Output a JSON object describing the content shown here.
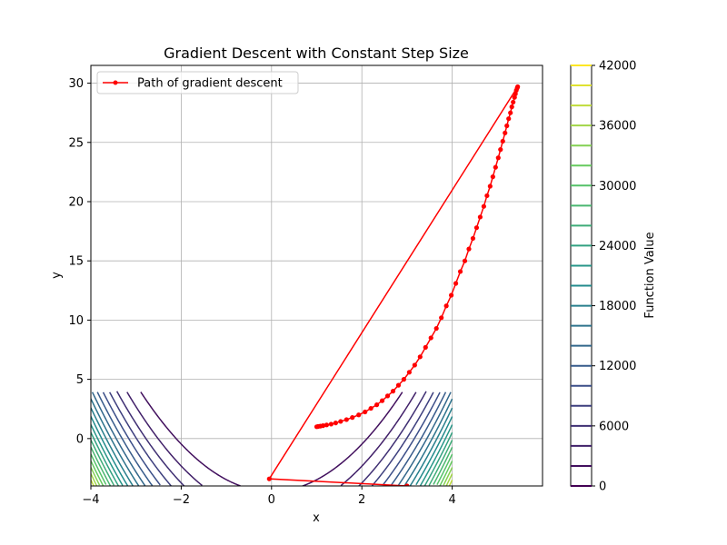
{
  "chart_data": {
    "type": "line",
    "title": "Gradient Descent with Constant Step Size",
    "xlabel": "x",
    "ylabel": "y",
    "xlim": [
      -4,
      6
    ],
    "ylim": [
      -4,
      31.5
    ],
    "xticks": [
      -4,
      -2,
      0,
      2,
      4
    ],
    "xtick_labels": [
      "−4",
      "−2",
      "0",
      "2",
      "4"
    ],
    "yticks": [
      -5,
      0,
      5,
      10,
      15,
      20,
      25,
      30
    ],
    "ytick_labels": [
      "−5",
      "0",
      "5",
      "10",
      "15",
      "20",
      "25",
      "30"
    ],
    "grid": true,
    "legend": {
      "placement": "top-left",
      "entries": [
        "Path of gradient descent"
      ]
    },
    "series": [
      {
        "name": "Path of gradient descent",
        "color": "#ff0000",
        "marker": "circle",
        "x": [
          3.0,
          -0.05,
          5.45,
          5.44,
          5.42,
          5.4,
          5.38,
          5.35,
          5.32,
          5.29,
          5.25,
          5.21,
          5.17,
          5.12,
          5.07,
          5.02,
          4.96,
          4.9,
          4.84,
          4.77,
          4.7,
          4.62,
          4.54,
          4.46,
          4.37,
          4.28,
          4.18,
          4.08,
          3.98,
          3.87,
          3.76,
          3.65,
          3.53,
          3.41,
          3.29,
          3.17,
          3.05,
          2.93,
          2.81,
          2.69,
          2.57,
          2.45,
          2.33,
          2.2,
          2.07,
          1.93,
          1.79,
          1.66,
          1.53,
          1.42,
          1.32,
          1.22,
          1.14,
          1.08,
          1.03,
          1.0
        ],
        "y": [
          -4.0,
          -3.4,
          29.7,
          29.6,
          29.4,
          29.1,
          28.8,
          28.4,
          28.0,
          27.5,
          27.0,
          26.4,
          25.8,
          25.1,
          24.4,
          23.7,
          22.9,
          22.1,
          21.3,
          20.5,
          19.6,
          18.7,
          17.8,
          16.9,
          16.0,
          15.0,
          14.1,
          13.1,
          12.1,
          11.2,
          10.2,
          9.3,
          8.5,
          7.7,
          6.9,
          6.2,
          5.6,
          5.0,
          4.5,
          4.0,
          3.6,
          3.2,
          2.85,
          2.55,
          2.25,
          2.0,
          1.78,
          1.6,
          1.45,
          1.32,
          1.22,
          1.15,
          1.09,
          1.05,
          1.02,
          1.0
        ]
      }
    ],
    "contour": {
      "function": "Rosenbrock f(x,y) = (1-x)^2 + 100(y-x^2)^2",
      "domain_x": [
        -4,
        4
      ],
      "domain_y": [
        -4,
        4
      ],
      "levels": [
        0,
        2000,
        4000,
        6000,
        8000,
        10000,
        12000,
        14000,
        16000,
        18000,
        20000,
        22000,
        24000,
        26000,
        28000,
        30000,
        32000,
        34000,
        36000,
        38000,
        40000,
        42000
      ],
      "colormap": "viridis"
    },
    "colorbar": {
      "label": "Function Value",
      "ticks": [
        0,
        6000,
        12000,
        18000,
        24000,
        30000,
        36000,
        42000
      ],
      "tick_labels": [
        "0",
        "6000",
        "12000",
        "18000",
        "24000",
        "30000",
        "36000",
        "42000"
      ]
    }
  }
}
